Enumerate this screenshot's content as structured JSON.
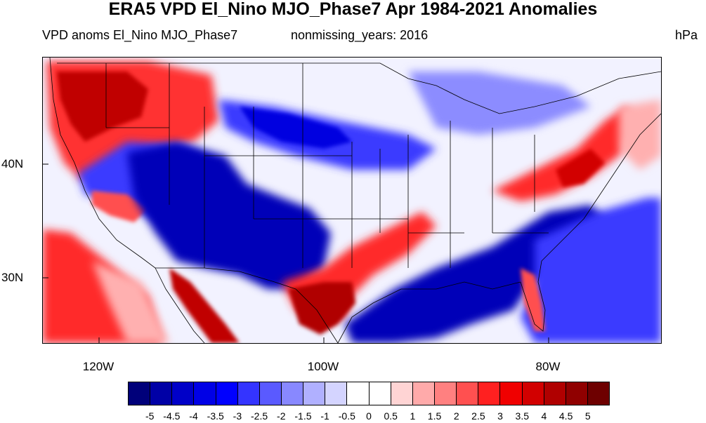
{
  "title": "ERA5 VPD El_Nino MJO_Phase7 Apr 1984-2021 Anomalies",
  "subtitle_left": "VPD anoms El_Nino MJO_Phase7",
  "subtitle_center": "nonmissing_years: 2016",
  "subtitle_right": "hPa",
  "map": {
    "lat_ticks": [
      "40N",
      "30N"
    ],
    "lon_ticks": [
      "120W",
      "100W",
      "80W"
    ]
  },
  "colorbar": {
    "labels": [
      "-5",
      "-4.5",
      "-4",
      "-3.5",
      "-3",
      "-2.5",
      "-2",
      "-1.5",
      "-1",
      "-0.5",
      "0",
      "0.5",
      "1",
      "1.5",
      "2",
      "2.5",
      "3",
      "3.5",
      "4",
      "4.5",
      "5"
    ],
    "colors": [
      "#00007a",
      "#0000a6",
      "#0000c8",
      "#0000e6",
      "#0000ff",
      "#3434ff",
      "#5a5aff",
      "#8888ff",
      "#b0b0ff",
      "#d4d4ff",
      "#ffffff",
      "#ffffff",
      "#ffd4d4",
      "#ffaaaa",
      "#ff8080",
      "#ff5050",
      "#ff2020",
      "#f00000",
      "#d20000",
      "#b00000",
      "#900000",
      "#6e0000"
    ]
  },
  "map_colors": {
    "background": "#f2f2ff",
    "strong_blue": "#0000b8",
    "medium_blue": "#3b3bff",
    "light_blue": "#b8b8ff",
    "strong_red": "#c00000",
    "medium_red": "#ff2a2a",
    "light_red": "#ffb0b0",
    "border": "#000000"
  }
}
